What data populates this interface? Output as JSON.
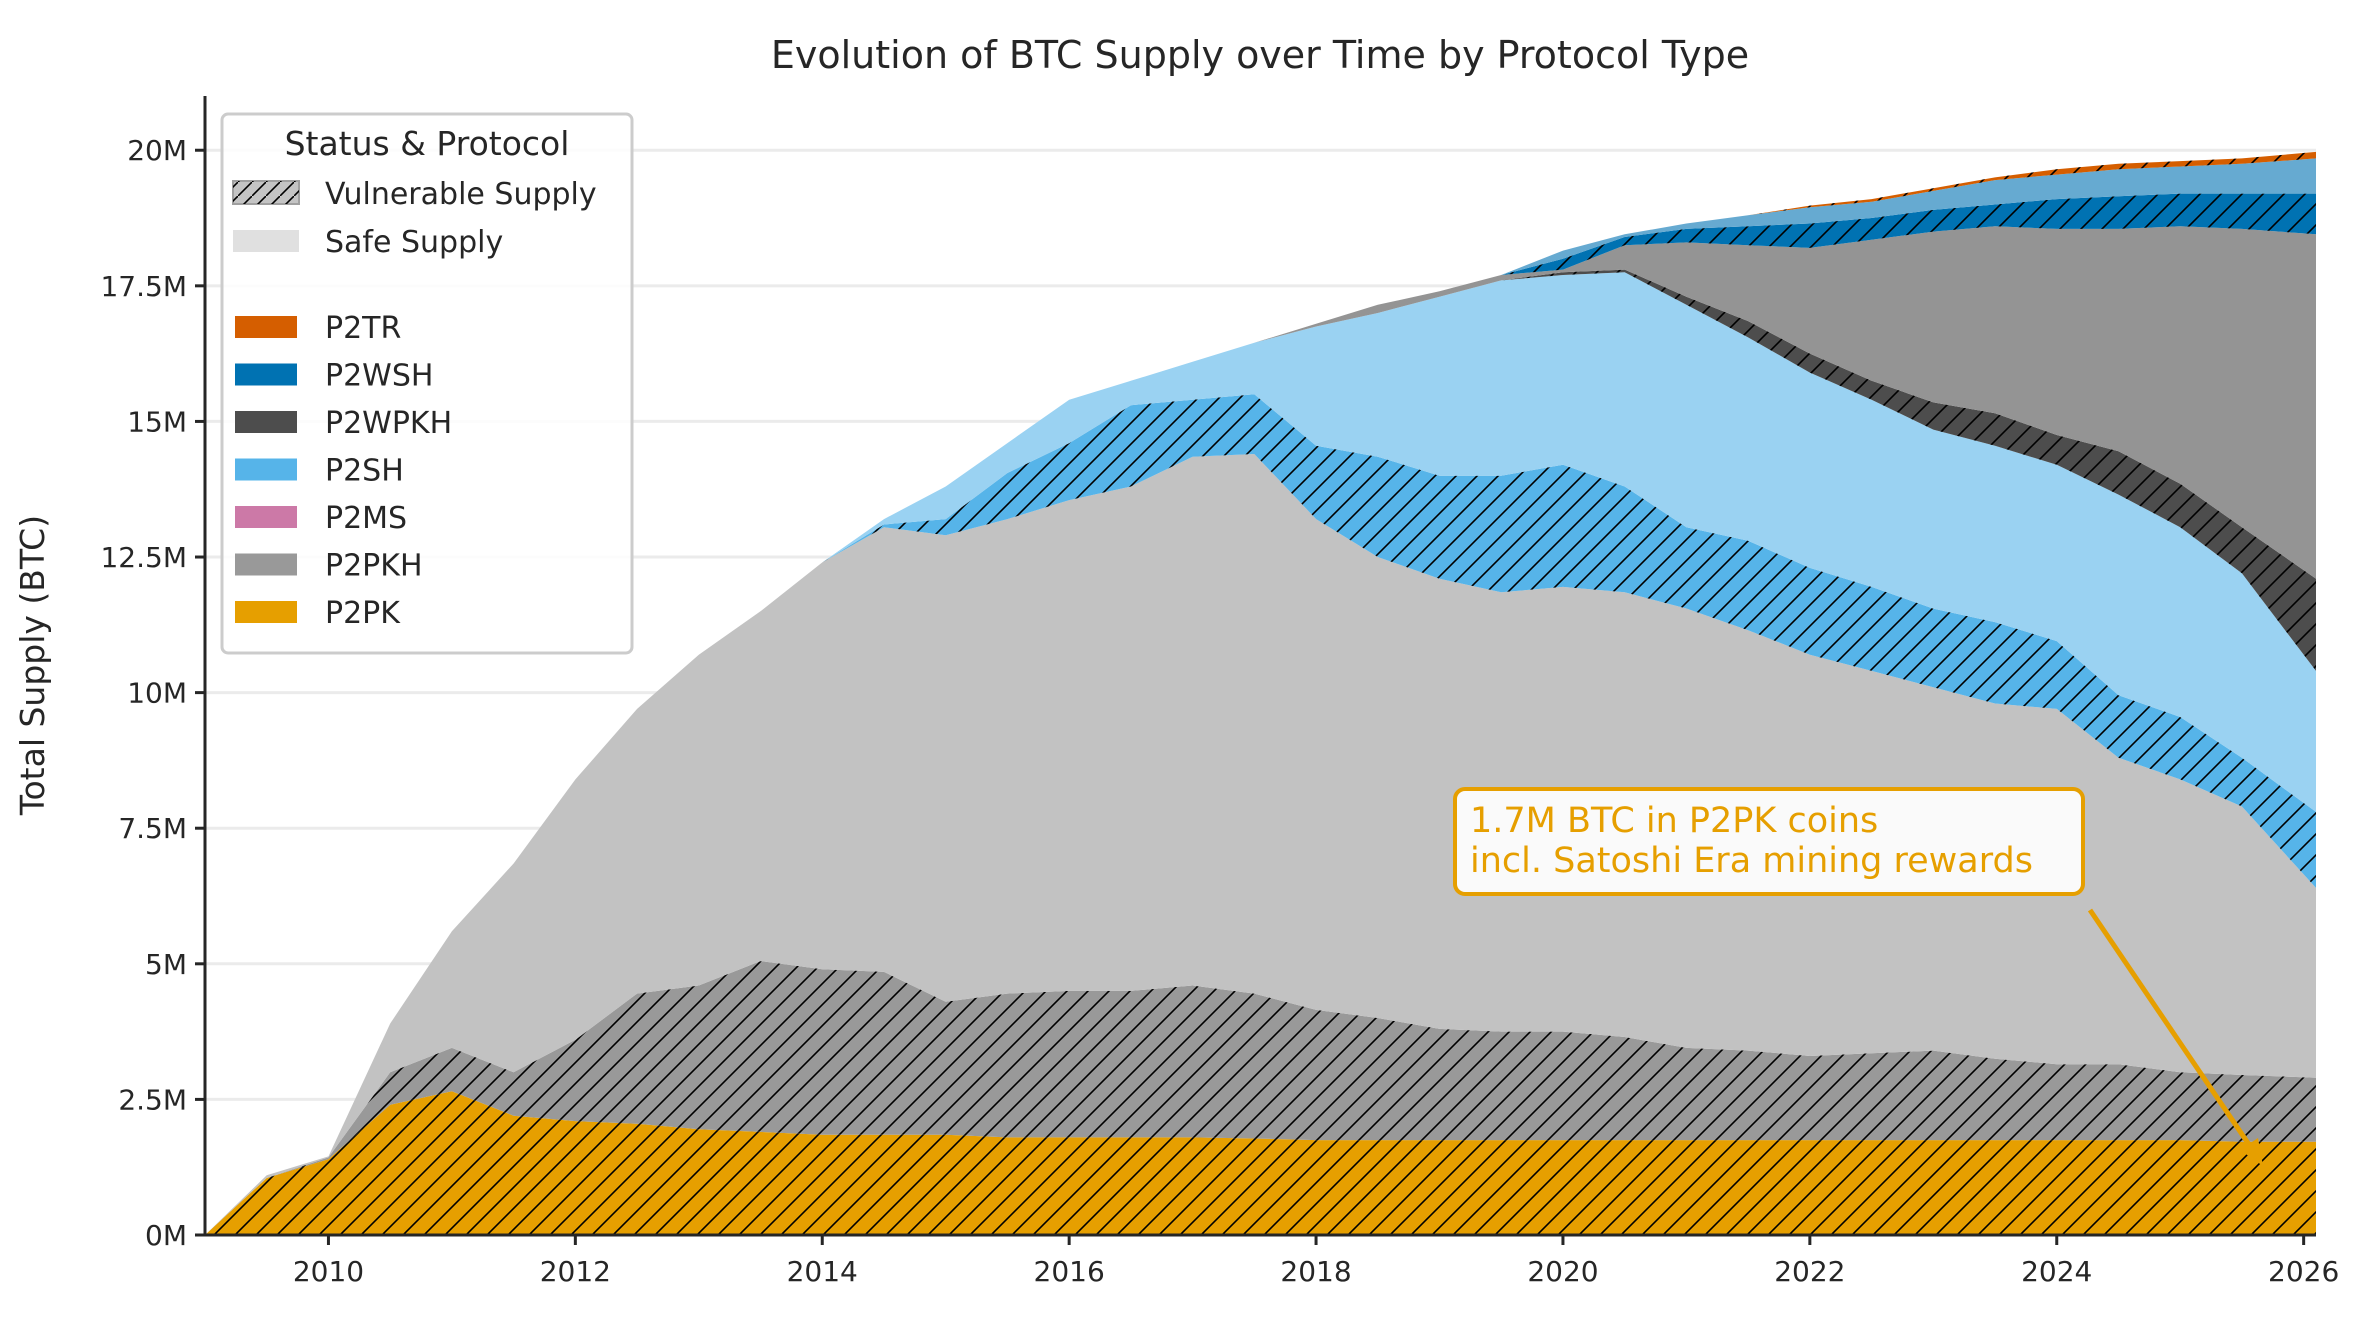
{
  "chart_data": {
    "type": "area",
    "stacked": true,
    "title": "Evolution of BTC Supply over Time by Protocol Type",
    "xlabel": "",
    "ylabel": "Total Supply (BTC)",
    "xlim": [
      2009.0,
      2026.1
    ],
    "ylim": [
      0,
      21
    ],
    "x_ticks": [
      2010,
      2012,
      2014,
      2016,
      2018,
      2020,
      2022,
      2024,
      2026
    ],
    "x_tick_labels": [
      "2010",
      "2012",
      "2014",
      "2016",
      "2018",
      "2020",
      "2022",
      "2024",
      "2026"
    ],
    "y_ticks": [
      0,
      2.5,
      5,
      7.5,
      10,
      12.5,
      15,
      17.5,
      20
    ],
    "y_tick_labels": [
      "0M",
      "2.5M",
      "5M",
      "7.5M",
      "10M",
      "12.5M",
      "15M",
      "17.5M",
      "20M"
    ],
    "y_unit": "million BTC",
    "grid": "horizontal",
    "legend_placement": "top-left",
    "legend": {
      "title": "Status & Protocol",
      "status_entries": [
        {
          "label": "Vulnerable Supply",
          "style": "hatched"
        },
        {
          "label": "Safe Supply",
          "style": "solid-light"
        }
      ],
      "protocol_entries": [
        {
          "label": "P2TR",
          "color": "#D55E00"
        },
        {
          "label": "P2WSH",
          "color": "#0072B2"
        },
        {
          "label": "P2WPKH",
          "color": "#4D4D4D"
        },
        {
          "label": "P2SH",
          "color": "#56B4E9"
        },
        {
          "label": "P2MS",
          "color": "#CC79A7"
        },
        {
          "label": "P2PKH",
          "color": "#999999"
        },
        {
          "label": "P2PK",
          "color": "#E69F00"
        }
      ]
    },
    "x": [
      2009.0,
      2009.5,
      2010.0,
      2010.5,
      2011.0,
      2011.5,
      2012.0,
      2012.5,
      2013.0,
      2013.5,
      2014.0,
      2014.5,
      2015.0,
      2015.5,
      2016.0,
      2016.5,
      2017.0,
      2017.5,
      2018.0,
      2018.5,
      2019.0,
      2019.5,
      2020.0,
      2020.5,
      2021.0,
      2021.5,
      2022.0,
      2022.5,
      2023.0,
      2023.5,
      2024.0,
      2024.5,
      2025.0,
      2025.5,
      2026.1
    ],
    "series": [
      {
        "protocol": "P2PK",
        "status": "vulnerable",
        "color": "#E69F00",
        "values": [
          0,
          1.05,
          1.4,
          2.4,
          2.65,
          2.2,
          2.1,
          2.05,
          1.95,
          1.9,
          1.85,
          1.85,
          1.85,
          1.8,
          1.8,
          1.8,
          1.8,
          1.78,
          1.75,
          1.75,
          1.75,
          1.75,
          1.75,
          1.75,
          1.75,
          1.75,
          1.75,
          1.75,
          1.75,
          1.75,
          1.75,
          1.75,
          1.75,
          1.72,
          1.72
        ]
      },
      {
        "protocol": "P2PKH",
        "status": "vulnerable",
        "color": "#999999",
        "values": [
          0,
          0,
          0.03,
          0.6,
          0.8,
          0.8,
          1.5,
          2.4,
          2.65,
          3.15,
          3.05,
          3.0,
          2.45,
          2.65,
          2.7,
          2.7,
          2.8,
          2.67,
          2.4,
          2.25,
          2.05,
          2.0,
          2.0,
          1.9,
          1.7,
          1.65,
          1.55,
          1.6,
          1.65,
          1.5,
          1.4,
          1.4,
          1.25,
          1.23,
          1.18
        ]
      },
      {
        "protocol": "P2PKH",
        "status": "safe",
        "color": "#999999",
        "values": [
          0,
          0.05,
          0.02,
          0.9,
          2.15,
          3.85,
          4.8,
          5.25,
          6.1,
          6.45,
          7.5,
          8.2,
          8.6,
          8.75,
          9.05,
          9.3,
          9.75,
          9.95,
          9.05,
          8.5,
          8.3,
          8.1,
          8.2,
          8.2,
          8.1,
          7.75,
          7.4,
          7.05,
          6.7,
          6.55,
          6.55,
          5.65,
          5.4,
          4.95,
          3.5
        ]
      },
      {
        "protocol": "P2MS",
        "status": "vulnerable",
        "color": "#CC79A7",
        "values": [
          0,
          0,
          0,
          0,
          0,
          0,
          0,
          0,
          0,
          0,
          0,
          0,
          0,
          0,
          0,
          0,
          0,
          0,
          0,
          0,
          0,
          0,
          0,
          0,
          0,
          0,
          0,
          0,
          0,
          0,
          0,
          0,
          0,
          0,
          0
        ]
      },
      {
        "protocol": "P2SH",
        "status": "vulnerable",
        "color": "#56B4E9",
        "values": [
          0,
          0,
          0,
          0,
          0,
          0,
          0,
          0,
          0,
          0,
          0,
          0.05,
          0.3,
          0.85,
          1.05,
          1.5,
          1.05,
          1.1,
          1.35,
          1.85,
          1.9,
          2.15,
          2.25,
          1.95,
          1.5,
          1.65,
          1.6,
          1.55,
          1.45,
          1.5,
          1.25,
          1.15,
          1.15,
          0.9,
          1.4
        ]
      },
      {
        "protocol": "P2SH",
        "status": "safe",
        "color": "#56B4E9",
        "values": [
          0,
          0,
          0,
          0,
          0,
          0,
          0,
          0,
          0,
          0,
          0,
          0.1,
          0.6,
          0.55,
          0.8,
          0.45,
          0.7,
          0.95,
          2.2,
          2.65,
          3.3,
          3.6,
          3.5,
          3.95,
          4.1,
          3.75,
          3.6,
          3.45,
          3.3,
          3.25,
          3.25,
          3.7,
          3.5,
          3.4,
          2.6
        ]
      },
      {
        "protocol": "P2WPKH",
        "status": "vulnerable",
        "color": "#4D4D4D",
        "values": [
          0,
          0,
          0,
          0,
          0,
          0,
          0,
          0,
          0,
          0,
          0,
          0,
          0,
          0,
          0,
          0,
          0,
          0,
          0,
          0,
          0,
          0,
          0.05,
          0.05,
          0.15,
          0.3,
          0.35,
          0.35,
          0.5,
          0.6,
          0.55,
          0.8,
          0.8,
          0.85,
          1.7
        ]
      },
      {
        "protocol": "P2WPKH",
        "status": "safe",
        "color": "#4D4D4D",
        "values": [
          0,
          0,
          0,
          0,
          0,
          0,
          0,
          0,
          0,
          0,
          0,
          0,
          0,
          0,
          0,
          0,
          0,
          0,
          0.05,
          0.15,
          0.1,
          0.1,
          0.05,
          0.45,
          1.0,
          1.4,
          1.95,
          2.6,
          3.15,
          3.45,
          3.8,
          4.1,
          4.75,
          5.5,
          6.35
        ]
      },
      {
        "protocol": "P2WSH",
        "status": "vulnerable",
        "color": "#0072B2",
        "values": [
          0,
          0,
          0,
          0,
          0,
          0,
          0,
          0,
          0,
          0,
          0,
          0,
          0,
          0,
          0,
          0,
          0,
          0,
          0,
          0,
          0,
          0,
          0.2,
          0.15,
          0.25,
          0.35,
          0.45,
          0.4,
          0.4,
          0.4,
          0.55,
          0.6,
          0.6,
          0.65,
          0.75
        ]
      },
      {
        "protocol": "P2WSH",
        "status": "safe",
        "color": "#0072B2",
        "values": [
          0,
          0,
          0,
          0,
          0,
          0,
          0,
          0,
          0,
          0,
          0,
          0,
          0,
          0,
          0,
          0,
          0,
          0,
          0,
          0,
          0,
          0,
          0.15,
          0.05,
          0.1,
          0.2,
          0.3,
          0.3,
          0.35,
          0.45,
          0.45,
          0.5,
          0.5,
          0.55,
          0.65
        ]
      },
      {
        "protocol": "P2TR",
        "status": "vulnerable",
        "color": "#D55E00",
        "values": [
          0,
          0,
          0,
          0,
          0,
          0,
          0,
          0,
          0,
          0,
          0,
          0,
          0,
          0,
          0,
          0,
          0,
          0,
          0,
          0,
          0,
          0,
          0,
          0,
          0,
          0,
          0.03,
          0.05,
          0.05,
          0.05,
          0.1,
          0.1,
          0.1,
          0.1,
          0.12
        ]
      }
    ],
    "annotation": {
      "lines": [
        "1.7M BTC in P2PK coins",
        "incl. Satoshi Era mining rewards"
      ],
      "color": "#E69F00",
      "points_to": {
        "x": 2025.6,
        "y": 1.2
      }
    }
  }
}
